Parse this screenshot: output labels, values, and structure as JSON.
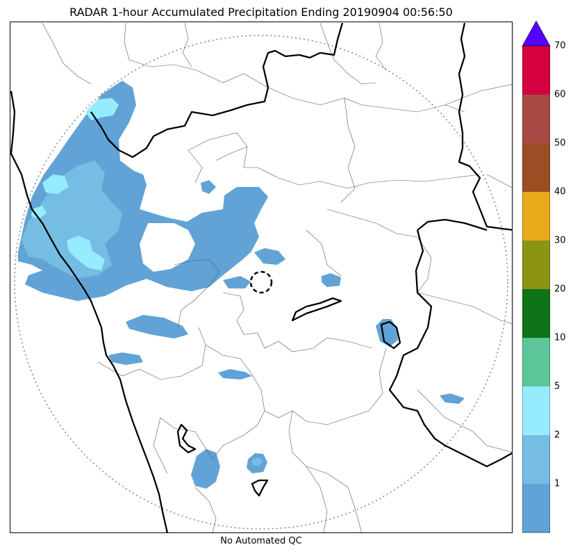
{
  "title": "RADAR 1-hour Accumulated Precipitation Ending 20190904 00:56:50",
  "footer": "No Automated QC",
  "colorbar": {
    "tick_labels": [
      "1",
      "2",
      "5",
      "10",
      "20",
      "30",
      "40",
      "50",
      "60",
      "70"
    ],
    "bins": [
      {
        "color": "#61a3d6"
      },
      {
        "color": "#76bde3"
      },
      {
        "color": "#96ecfd"
      },
      {
        "color": "#5dc59a"
      },
      {
        "color": "#0f7418"
      },
      {
        "color": "#8c9414"
      },
      {
        "color": "#e8a91a"
      },
      {
        "color": "#9b4e23"
      },
      {
        "color": "#a64a43"
      },
      {
        "color": "#d4003f"
      }
    ],
    "extend_color": "#5500ff"
  },
  "colors": {
    "light_rain": "#61a3d6",
    "moderate_rain": "#76bde3",
    "heavy_cells": "#96ecfd",
    "coastline": "#000000",
    "district_lines": "#555555",
    "range_ring": "#808080"
  }
}
